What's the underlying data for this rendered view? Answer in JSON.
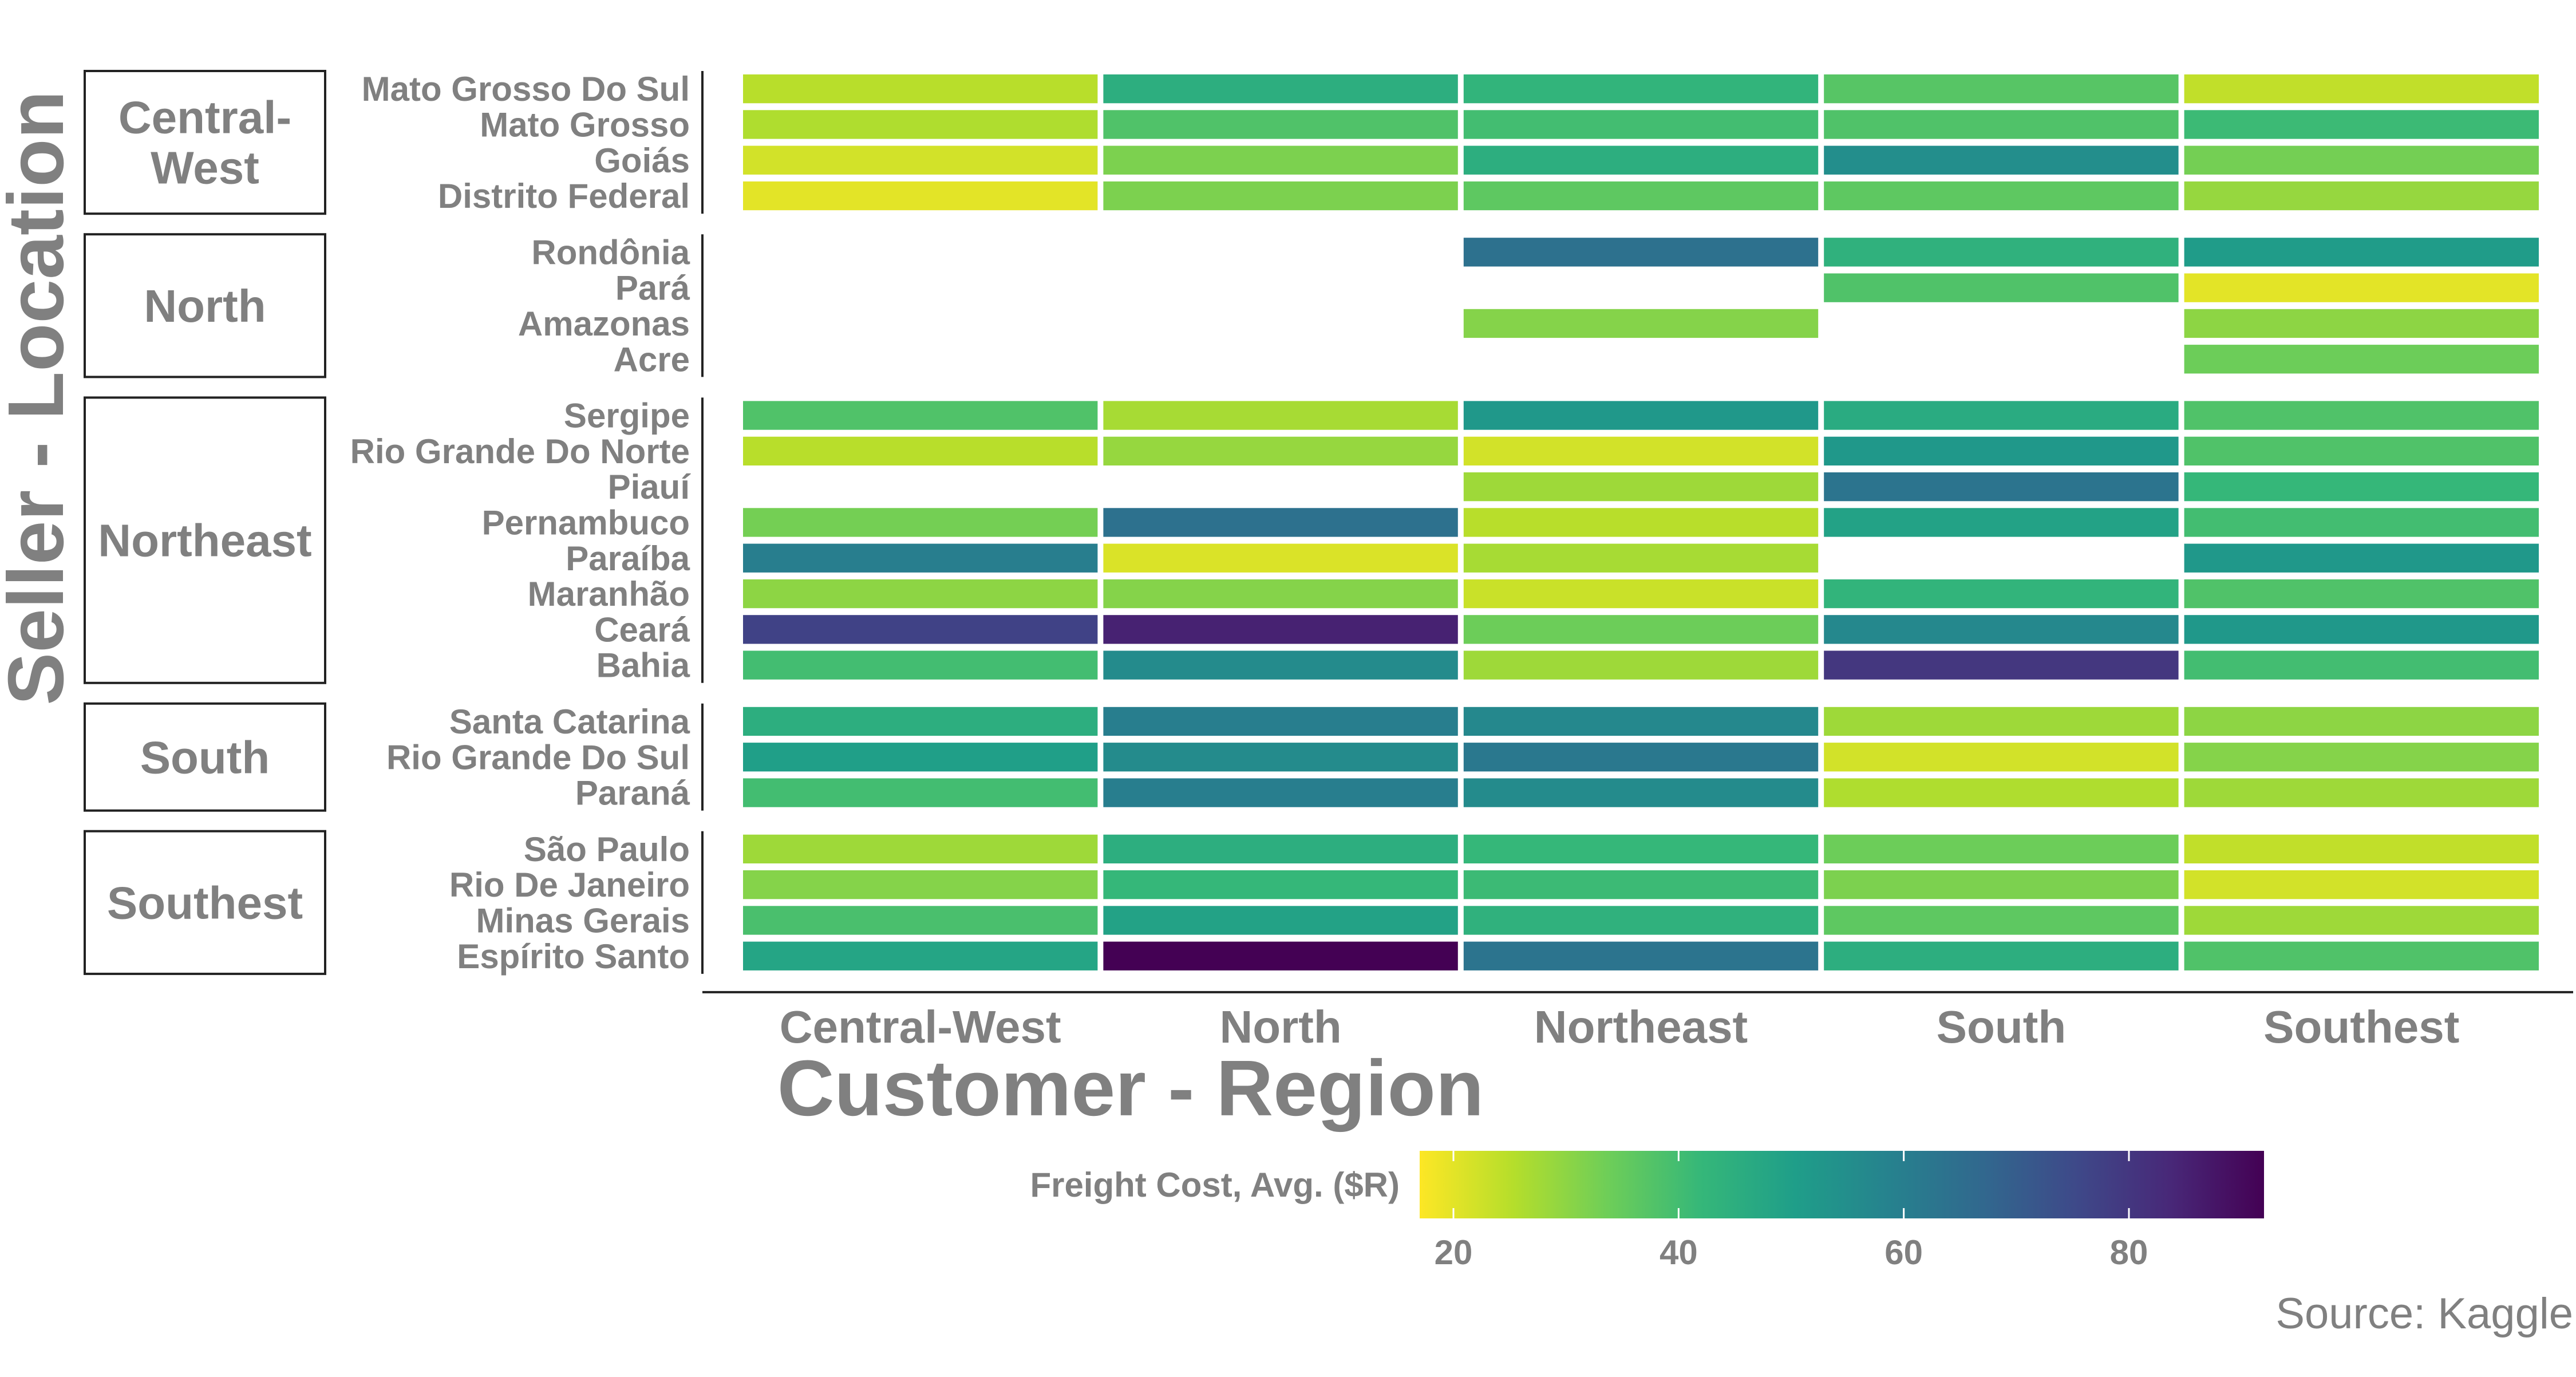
{
  "chart_data": {
    "type": "heatmap",
    "title": "",
    "xlabel": "Customer - Region",
    "ylabel": "Seller - Location",
    "x_categories": [
      "Central-West",
      "North",
      "Northeast",
      "South",
      "Southest"
    ],
    "facets": [
      {
        "name": "Central-West",
        "rows": [
          {
            "state": "Mato Grosso Do Sul",
            "values": [
              25,
              45,
              43,
              37,
              24
            ]
          },
          {
            "state": "Mato Grosso",
            "values": [
              26,
              38,
              40,
              38,
              41
            ]
          },
          {
            "state": "Goiás",
            "values": [
              22,
              32,
              45,
              55,
              33
            ]
          },
          {
            "state": "Distrito Federal",
            "values": [
              20,
              32,
              36,
              36,
              29
            ]
          }
        ]
      },
      {
        "name": "North",
        "rows": [
          {
            "state": "Rondônia",
            "values": [
              null,
              null,
              64,
              44,
              51
            ]
          },
          {
            "state": "Pará",
            "values": [
              null,
              null,
              null,
              38,
              20
            ]
          },
          {
            "state": "Amazonas",
            "values": [
              null,
              null,
              31,
              null,
              30
            ]
          },
          {
            "state": "Acre",
            "values": [
              null,
              null,
              null,
              null,
              34
            ]
          }
        ]
      },
      {
        "name": "Northeast",
        "rows": [
          {
            "state": "Sergipe",
            "values": [
              38,
              27,
              52,
              46,
              38
            ]
          },
          {
            "state": "Rio Grande Do Norte",
            "values": [
              25,
              29,
              22,
              52,
              38
            ]
          },
          {
            "state": "Piauí",
            "values": [
              null,
              null,
              28,
              63,
              42
            ]
          },
          {
            "state": "Pernambuco",
            "values": [
              33,
              64,
              25,
              49,
              40
            ]
          },
          {
            "state": "Paraíba",
            "values": [
              60,
              21,
              27,
              null,
              52
            ]
          },
          {
            "state": "Maranhão",
            "values": [
              30,
              31,
              23,
              43,
              38
            ]
          },
          {
            "state": "Ceará",
            "values": [
              77,
              85,
              34,
              57,
              52
            ]
          },
          {
            "state": "Bahia",
            "values": [
              40,
              56,
              28,
              80,
              40
            ]
          }
        ]
      },
      {
        "name": "South",
        "rows": [
          {
            "state": "Santa Catarina",
            "values": [
              45,
              60,
              57,
              28,
              30
            ]
          },
          {
            "state": "Rio Grande Do Sul",
            "values": [
              50,
              56,
              62,
              22,
              31
            ]
          },
          {
            "state": "Paraná",
            "values": [
              40,
              60,
              56,
              26,
              28
            ]
          }
        ]
      },
      {
        "name": "Southest",
        "rows": [
          {
            "state": "São Paulo",
            "values": [
              28,
              45,
              42,
              34,
              24
            ]
          },
          {
            "state": "Rio De Janeiro",
            "values": [
              31,
              42,
              41,
              32,
              22
            ]
          },
          {
            "state": "Minas Gerais",
            "values": [
              39,
              49,
              44,
              36,
              28
            ]
          },
          {
            "state": "Espírito Santo",
            "values": [
              48,
              92,
              63,
              45,
              38
            ]
          }
        ]
      }
    ],
    "colorbar": {
      "title": "Freight Cost, Avg. ($R)",
      "min": 17,
      "max": 92,
      "ticks": [
        20,
        40,
        60,
        80
      ],
      "palette": [
        "#fde725",
        "#b5de2b",
        "#6ece58",
        "#35b779",
        "#1f9e89",
        "#26828e",
        "#31688e",
        "#3e4989",
        "#482878",
        "#440154"
      ],
      "placement": "bottom"
    },
    "source": "Source: Kaggle",
    "missing_color": "#ffffff",
    "text_color": "#808080"
  }
}
